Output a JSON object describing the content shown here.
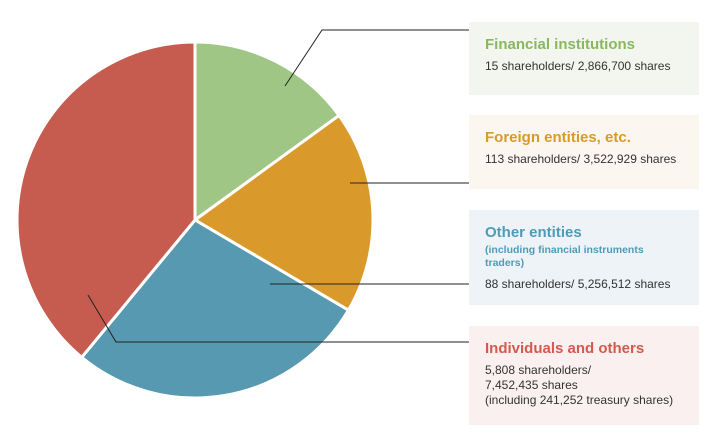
{
  "chart_data": {
    "type": "pie",
    "legend_position": "right",
    "slices": [
      {
        "label": "Financial institutions",
        "subtitle": "",
        "shareholders": 15,
        "shares": 2866700,
        "detail_lines": [
          "15 shareholders/ 2,866,700 shares"
        ],
        "color": "#a0c685",
        "title_color": "#8ab85e"
      },
      {
        "label": "Foreign entities, etc.",
        "subtitle": "",
        "shareholders": 113,
        "shares": 3522929,
        "detail_lines": [
          "113 shareholders/ 3,522,929 shares"
        ],
        "color": "#d99a2b",
        "title_color": "#d99a2b"
      },
      {
        "label": "Other entities",
        "subtitle": "(including financial instruments traders)",
        "shareholders": 88,
        "shares": 5256512,
        "detail_lines": [
          "88 shareholders/ 5,256,512 shares"
        ],
        "color": "#5799b0",
        "title_color": "#4f9bb8"
      },
      {
        "label": "Individuals and others",
        "subtitle": "",
        "shareholders": 5808,
        "shares": 7452435,
        "treasury_shares": 241252,
        "detail_lines": [
          "5,808 shareholders/",
          "7,452,435 shares",
          "(including 241,252 treasury shares)"
        ],
        "color": "#c55c4f",
        "title_color": "#d15b4e"
      }
    ]
  }
}
